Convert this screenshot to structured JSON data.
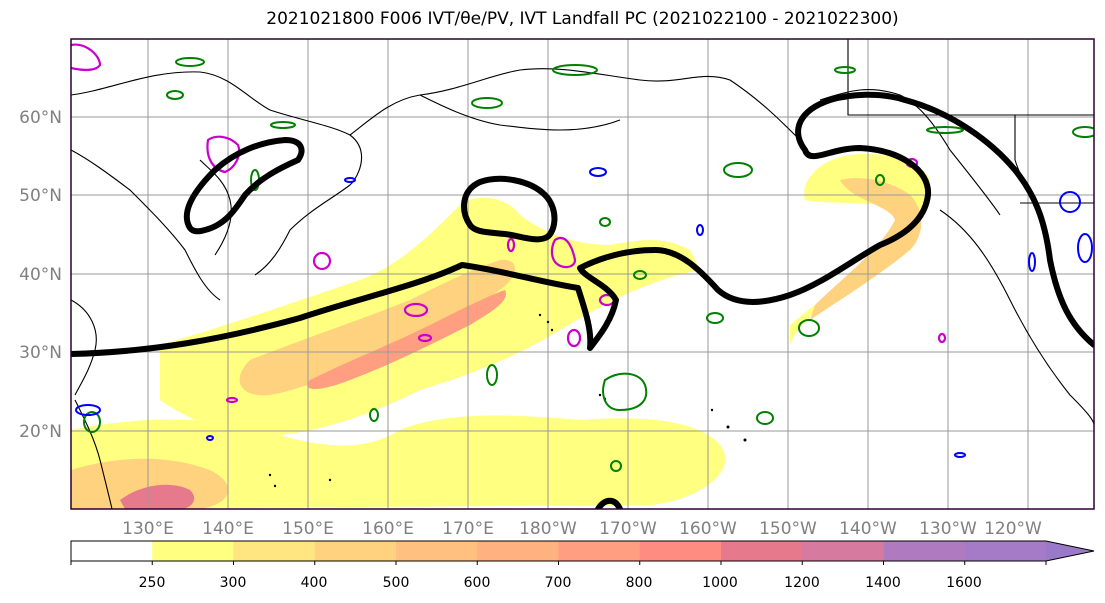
{
  "title": "2021021800 F006 IVT/θe/PV, IVT Landfall PC (2021022100 - 2021022300)",
  "map": {
    "lat_labels": [
      "60°N",
      "50°N",
      "40°N",
      "30°N",
      "20°N"
    ],
    "lon_labels": [
      "130°E",
      "140°E",
      "150°E",
      "160°E",
      "170°E",
      "180°W",
      "170°W",
      "160°W",
      "150°W",
      "140°W",
      "130°W",
      "120°W"
    ],
    "colors": {
      "coastline": "#000000",
      "pc_contour": "#000000",
      "theta_e_contour": "#008000",
      "pv_contour": "#cc00cc",
      "blue_contour": "#0000ff",
      "gridline": "#999999",
      "frame": "#2a0030"
    }
  },
  "colorbar": {
    "labels": [
      "250",
      "300",
      "400",
      "500",
      "600",
      "700",
      "800",
      "1000",
      "1200",
      "1400",
      "1600"
    ],
    "colors": [
      "#ffffff",
      "#ffff80",
      "#ffe680",
      "#ffd27f",
      "#ffc080",
      "#ffb27f",
      "#ff9e80",
      "#ff8c80",
      "#e67a8c",
      "#d67aa0",
      "#b07ac0",
      "#a57ac6",
      "#9a7ac8"
    ]
  }
}
